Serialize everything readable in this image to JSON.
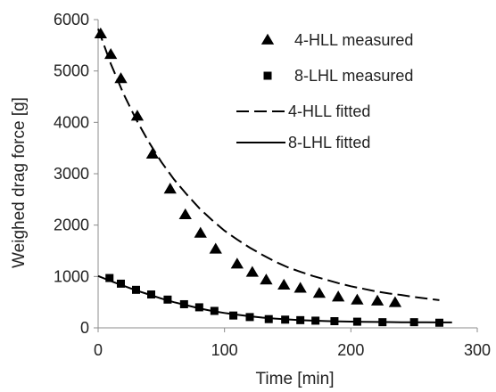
{
  "chart_data": {
    "type": "scatter",
    "title": "",
    "xlabel": "Time [min]",
    "ylabel": "Weighed drag force [g]",
    "xlim": [
      0,
      300
    ],
    "ylim": [
      0,
      6000
    ],
    "x_ticks": [
      0,
      100,
      200,
      300
    ],
    "y_ticks": [
      0,
      1000,
      2000,
      3000,
      4000,
      5000,
      6000
    ],
    "grid": false,
    "legend_position": "top-right",
    "series": [
      {
        "name": "4-HLL measured",
        "kind": "marker",
        "marker": "triangle",
        "color": "#000000",
        "x": [
          2,
          10,
          18,
          31,
          43,
          57,
          69,
          81,
          93,
          110,
          122,
          133,
          147,
          160,
          175,
          190,
          205,
          221,
          235
        ],
        "y": [
          5720,
          5320,
          4850,
          4120,
          3380,
          2700,
          2200,
          1840,
          1530,
          1240,
          1080,
          930,
          830,
          770,
          670,
          600,
          540,
          520,
          490
        ]
      },
      {
        "name": "8-LHL measured",
        "kind": "marker",
        "marker": "square",
        "color": "#000000",
        "x": [
          9,
          18,
          30,
          42,
          55,
          68,
          80,
          92,
          107,
          120,
          135,
          148,
          160,
          172,
          187,
          205,
          225,
          250,
          270
        ],
        "y": [
          970,
          860,
          740,
          650,
          550,
          460,
          400,
          330,
          240,
          210,
          170,
          160,
          150,
          140,
          130,
          120,
          110,
          110,
          100
        ]
      },
      {
        "name": "4-HLL fitted",
        "kind": "line",
        "dash": "dashed",
        "color": "#000000",
        "x": [
          0,
          10,
          20,
          30,
          40,
          50,
          60,
          70,
          80,
          90,
          100,
          110,
          120,
          130,
          140,
          150,
          160,
          170,
          180,
          190,
          200,
          210,
          220,
          230,
          240,
          250,
          260,
          270
        ],
        "y": [
          5820,
          5140,
          4560,
          4060,
          3620,
          3230,
          2890,
          2600,
          2330,
          2100,
          1890,
          1720,
          1560,
          1420,
          1290,
          1180,
          1090,
          1010,
          940,
          870,
          810,
          760,
          710,
          670,
          640,
          600,
          570,
          540
        ]
      },
      {
        "name": "8-LHL fitted",
        "kind": "line",
        "dash": "solid",
        "color": "#000000",
        "x": [
          0,
          10,
          20,
          30,
          40,
          50,
          60,
          70,
          80,
          90,
          100,
          110,
          120,
          130,
          140,
          150,
          160,
          170,
          180,
          190,
          200,
          210,
          220,
          230,
          240,
          250,
          260,
          270,
          280
        ],
        "y": [
          1010,
          910,
          820,
          730,
          650,
          570,
          500,
          440,
          380,
          330,
          290,
          255,
          225,
          200,
          180,
          165,
          150,
          140,
          132,
          126,
          121,
          117,
          114,
          112,
          110,
          108,
          107,
          106,
          105
        ]
      }
    ]
  }
}
